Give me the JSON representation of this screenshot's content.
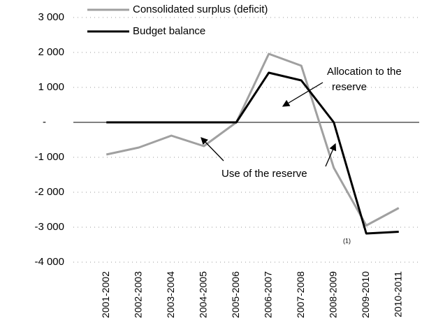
{
  "chart_data": {
    "type": "line",
    "categories": [
      "2001-2002",
      "2002-2003",
      "2003-2004",
      "2004-2005",
      "2005-2006",
      "2006-2007",
      "2007-2008",
      "2008-2009",
      "2009-2010",
      "2010-2011"
    ],
    "series": [
      {
        "name": "Consolidated surplus (deficit)",
        "color": "#a0a0a0",
        "values": [
          -920,
          -720,
          -380,
          -680,
          0,
          1960,
          1620,
          -1300,
          -2950,
          -2450
        ]
      },
      {
        "name": "Budget balance",
        "color": "#000000",
        "values": [
          0,
          0,
          0,
          0,
          0,
          1420,
          1200,
          0,
          -3180,
          -3130
        ]
      }
    ],
    "ylim": [
      -4000,
      3000
    ],
    "yticks": [
      {
        "value": 3000,
        "label": "3 000"
      },
      {
        "value": 2000,
        "label": "2 000"
      },
      {
        "value": 1000,
        "label": "1 000"
      },
      {
        "value": 0,
        "label": "-"
      },
      {
        "value": -1000,
        "label": "-1 000"
      },
      {
        "value": -2000,
        "label": "-2 000"
      },
      {
        "value": -3000,
        "label": "-3 000"
      },
      {
        "value": -4000,
        "label": "-4 000"
      }
    ],
    "grid": true,
    "annotations": [
      "Allocation to the",
      "reserve",
      "Use of the reserve",
      "(1)"
    ]
  }
}
